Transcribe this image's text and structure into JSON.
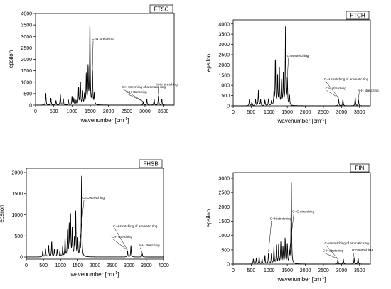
{
  "chart_data": [
    {
      "type": "line",
      "title": "FTSC",
      "xlabel": "wavenumber [cm",
      "xlabel_sup": "-1",
      "xlabel_end": "]",
      "ylabel": "epsilon",
      "xlim": [
        0,
        3800
      ],
      "ylim": [
        0,
        4000
      ],
      "xticks": [
        0,
        500,
        1000,
        1500,
        2000,
        2500,
        3000,
        3500
      ],
      "yticks": [
        0,
        500,
        1000,
        1500,
        2000,
        2500,
        3000,
        3500,
        4000
      ],
      "peaks": [
        [
          280,
          550
        ],
        [
          420,
          320
        ],
        [
          560,
          200
        ],
        [
          680,
          480
        ],
        [
          760,
          280
        ],
        [
          900,
          230
        ],
        [
          1000,
          380
        ],
        [
          1050,
          280
        ],
        [
          1110,
          200
        ],
        [
          1180,
          780
        ],
        [
          1230,
          1000
        ],
        [
          1290,
          600
        ],
        [
          1340,
          450
        ],
        [
          1390,
          1300
        ],
        [
          1440,
          1650
        ],
        [
          1490,
          3650
        ],
        [
          1560,
          1550
        ],
        [
          1610,
          500
        ],
        [
          2950,
          130
        ],
        [
          3050,
          260
        ],
        [
          3250,
          280
        ],
        [
          3370,
          420
        ],
        [
          3460,
          280
        ]
      ],
      "annotations": [
        {
          "text": "C=N stretching",
          "x": 1540,
          "y": 2850
        },
        {
          "text": "C-H stretching of aromatic ring",
          "x": 2350,
          "y": 750
        },
        {
          "text": "C-H stretching",
          "x": 2480,
          "y": 530
        },
        {
          "text": "N-H stretching",
          "x": 3320,
          "y": 850
        }
      ]
    },
    {
      "type": "line",
      "title": "FTCH",
      "xlabel": "wavenumber [cm",
      "xlabel_sup": "-1",
      "xlabel_end": "]",
      "ylabel": "epsilon",
      "xlim": [
        0,
        3800
      ],
      "ylim": [
        0,
        4200
      ],
      "xticks": [
        0,
        500,
        1000,
        1500,
        2000,
        2500,
        3000,
        3500
      ],
      "yticks": [
        0,
        500,
        1000,
        1500,
        2000,
        2500,
        3000,
        3500,
        4000
      ],
      "peaks": [
        [
          450,
          320
        ],
        [
          520,
          200
        ],
        [
          620,
          300
        ],
        [
          700,
          750
        ],
        [
          760,
          300
        ],
        [
          880,
          280
        ],
        [
          980,
          350
        ],
        [
          1060,
          230
        ],
        [
          1130,
          600
        ],
        [
          1170,
          2350
        ],
        [
          1230,
          1500
        ],
        [
          1280,
          1800
        ],
        [
          1340,
          1200
        ],
        [
          1390,
          1500
        ],
        [
          1450,
          3800
        ],
        [
          1500,
          1300
        ],
        [
          1560,
          500
        ],
        [
          2920,
          350
        ],
        [
          3040,
          330
        ],
        [
          3380,
          420
        ],
        [
          3470,
          300
        ]
      ],
      "annotations": [
        {
          "text": "C=N stretching",
          "x": 1490,
          "y": 2400
        },
        {
          "text": "C-H stretching of aromatic ring",
          "x": 2520,
          "y": 1250
        },
        {
          "text": "C-H stretching",
          "x": 2550,
          "y": 800
        },
        {
          "text": "N-H stretching",
          "x": 3450,
          "y": 700
        }
      ]
    },
    {
      "type": "line",
      "title": "FHSB",
      "xlabel": "wavenumber [cm",
      "xlabel_sup": "-1",
      "xlabel_end": "]",
      "ylabel": "epsilon",
      "xlim": [
        0,
        4000
      ],
      "ylim": [
        -50,
        2100
      ],
      "xticks": [
        0,
        500,
        1000,
        1500,
        2000,
        2500,
        3000,
        3500,
        4000
      ],
      "yticks": [
        0,
        500,
        1000,
        1500,
        2000
      ],
      "peaks": [
        [
          480,
          150
        ],
        [
          560,
          200
        ],
        [
          650,
          280
        ],
        [
          740,
          380
        ],
        [
          820,
          200
        ],
        [
          900,
          180
        ],
        [
          980,
          150
        ],
        [
          1060,
          250
        ],
        [
          1130,
          450
        ],
        [
          1200,
          600
        ],
        [
          1250,
          750
        ],
        [
          1290,
          980
        ],
        [
          1340,
          700
        ],
        [
          1400,
          400
        ],
        [
          1440,
          1050
        ],
        [
          1500,
          450
        ],
        [
          1560,
          300
        ],
        [
          1610,
          1950
        ],
        [
          2950,
          150
        ],
        [
          3050,
          280
        ],
        [
          3380,
          80
        ]
      ],
      "annotations": [
        {
          "text": "C=O stretching",
          "x": 1640,
          "y": 1380
        },
        {
          "text": "C-H stretching of aromatic ring",
          "x": 2530,
          "y": 710
        },
        {
          "text": "C-H stretching",
          "x": 2480,
          "y": 450
        },
        {
          "text": "N-H stretching",
          "x": 3280,
          "y": 250
        }
      ]
    },
    {
      "type": "line",
      "title": "FIN",
      "xlabel": "wavenumber [cm",
      "xlabel_sup": "-1",
      "xlabel_end": "]",
      "ylabel": "epsilon",
      "xlim": [
        0,
        3800
      ],
      "ylim": [
        0,
        3200
      ],
      "xticks": [
        0,
        500,
        1000,
        1500,
        2000,
        2500,
        3000,
        3500
      ],
      "yticks": [
        0,
        500,
        1000,
        1500,
        2000,
        2500,
        3000
      ],
      "peaks": [
        [
          560,
          180
        ],
        [
          640,
          200
        ],
        [
          720,
          250
        ],
        [
          800,
          180
        ],
        [
          880,
          300
        ],
        [
          980,
          400
        ],
        [
          1060,
          350
        ],
        [
          1130,
          580
        ],
        [
          1200,
          650
        ],
        [
          1260,
          680
        ],
        [
          1320,
          750
        ],
        [
          1380,
          600
        ],
        [
          1440,
          900
        ],
        [
          1500,
          700
        ],
        [
          1560,
          400
        ],
        [
          1610,
          3000
        ],
        [
          2900,
          160
        ],
        [
          3050,
          180
        ],
        [
          3350,
          200
        ],
        [
          3460,
          230
        ]
      ],
      "annotations": [
        {
          "text": "C=N stretching",
          "x": 1020,
          "y": 1550
        },
        {
          "text": "C=O stretching",
          "x": 1640,
          "y": 1800
        },
        {
          "text": "C-H stretching of aromatic ring",
          "x": 2530,
          "y": 700
        },
        {
          "text": "C-H stretching",
          "x": 2480,
          "y": 430
        },
        {
          "text": "N-H stretching",
          "x": 3280,
          "y": 470
        }
      ]
    }
  ]
}
